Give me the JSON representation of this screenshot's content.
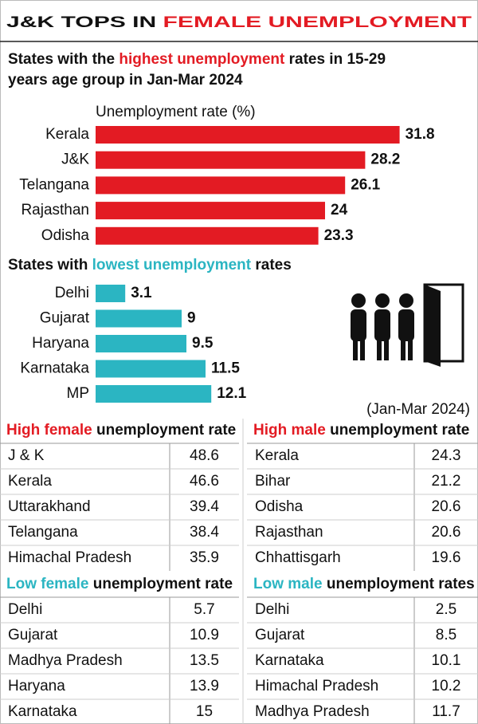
{
  "header": {
    "title_parts": [
      "J&K TOPS IN ",
      "FEMALE UNEMPLOYMENT"
    ]
  },
  "chart_data": [
    {
      "type": "bar",
      "title_lines": [
        [
          "States with the ",
          "highest unemployment",
          " rates in 15-29"
        ],
        [
          "years age group in Jan-Mar 2024"
        ]
      ],
      "axis_label": "Unemployment rate (%)",
      "categories": [
        "Kerala",
        "J&K",
        "Telangana",
        "Rajasthan",
        "Odisha"
      ],
      "values": [
        31.8,
        28.2,
        26.1,
        24,
        23.3
      ],
      "color": "#e31b23"
    },
    {
      "type": "bar",
      "title_lines": [
        [
          "States with ",
          "lowest unemployment",
          " rates"
        ]
      ],
      "categories": [
        "Delhi",
        "Gujarat",
        "Haryana",
        "Karnataka",
        "MP"
      ],
      "values": [
        3.1,
        9,
        9.5,
        11.5,
        12.1
      ],
      "color": "#2bb5c2"
    }
  ],
  "note": "(Jan-Mar 2024)",
  "tables": [
    {
      "title_parts": [
        "High female",
        " unemployment rate"
      ],
      "accent": "#e31b23",
      "rows": [
        [
          "J & K",
          48.6
        ],
        [
          "Kerala",
          46.6
        ],
        [
          "Uttarakhand",
          39.4
        ],
        [
          "Telangana",
          38.4
        ],
        [
          "Himachal Pradesh",
          35.9
        ]
      ]
    },
    {
      "title_parts": [
        "High male",
        " unemployment rate"
      ],
      "accent": "#e31b23",
      "rows": [
        [
          "Kerala",
          24.3
        ],
        [
          "Bihar",
          21.2
        ],
        [
          "Odisha",
          20.6
        ],
        [
          "Rajasthan",
          20.6
        ],
        [
          "Chhattisgarh",
          19.6
        ]
      ]
    },
    {
      "title_parts": [
        "Low female",
        " unemployment rate"
      ],
      "accent": "#2bb5c2",
      "rows": [
        [
          "Delhi",
          5.7
        ],
        [
          "Gujarat",
          10.9
        ],
        [
          "Madhya Pradesh",
          13.5
        ],
        [
          "Haryana",
          13.9
        ],
        [
          "Karnataka",
          15
        ]
      ]
    },
    {
      "title_parts": [
        "Low male",
        " unemployment rates"
      ],
      "accent": "#2bb5c2",
      "rows": [
        [
          "Delhi",
          2.5
        ],
        [
          "Gujarat",
          8.5
        ],
        [
          "Karnataka",
          10.1
        ],
        [
          "Himachal Pradesh",
          10.2
        ],
        [
          "Madhya Pradesh",
          11.7
        ]
      ]
    }
  ]
}
